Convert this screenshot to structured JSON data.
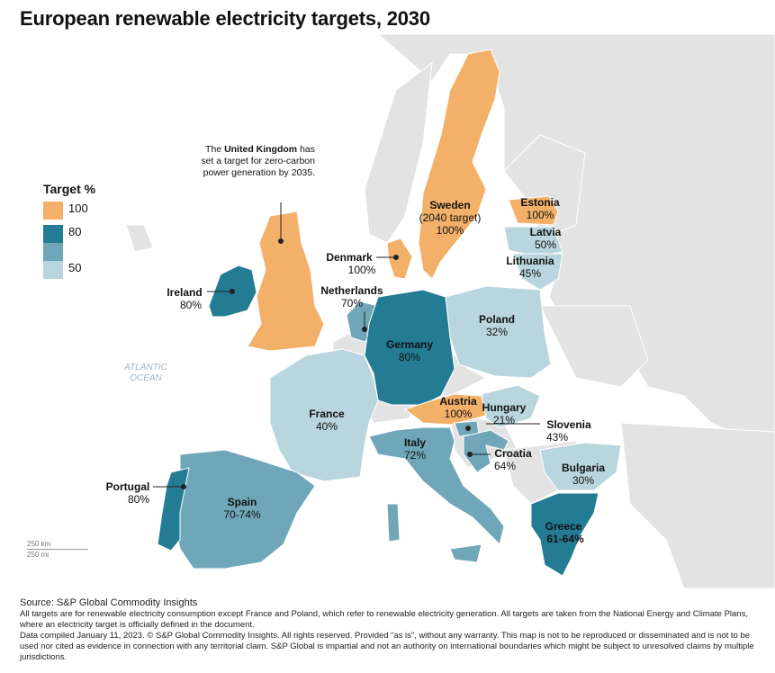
{
  "title": "European renewable electricity targets, 2030",
  "legend": {
    "title": "Target %",
    "items": [
      {
        "label": "100",
        "color": "#f2b068"
      },
      {
        "label": "80",
        "color": "#247c94"
      },
      {
        "label": "",
        "color": "#6fa7b8"
      },
      {
        "label": "50",
        "color": "#b9d6df"
      }
    ]
  },
  "colors": {
    "land": "#e3e3e3",
    "sea": "#ffffff",
    "border": "#ffffff"
  },
  "uk_note": {
    "prefix": "The ",
    "bold": "United Kingdom",
    "rest": "has set a target for zero-carbon power generation by 2035."
  },
  "sea_label": {
    "line1": "ATLANTIC",
    "line2": "OCEAN"
  },
  "countries": [
    {
      "id": "sweden",
      "name": "Sweden",
      "note": "(2040 target)",
      "target": "100%"
    },
    {
      "id": "estonia",
      "name": "Estonia",
      "target": "100%"
    },
    {
      "id": "latvia",
      "name": "Latvia",
      "target": "50%"
    },
    {
      "id": "lithuania",
      "name": "Lithuania",
      "target": "45%"
    },
    {
      "id": "denmark",
      "name": "Denmark",
      "target": "100%"
    },
    {
      "id": "ireland",
      "name": "Ireland",
      "target": "80%"
    },
    {
      "id": "netherlands",
      "name": "Netherlands",
      "target": "70%"
    },
    {
      "id": "poland",
      "name": "Poland",
      "target": "32%"
    },
    {
      "id": "germany",
      "name": "Germany",
      "target": "80%"
    },
    {
      "id": "france",
      "name": "France",
      "target": "40%"
    },
    {
      "id": "austria",
      "name": "Austria",
      "target": "100%"
    },
    {
      "id": "hungary",
      "name": "Hungary",
      "target": "21%"
    },
    {
      "id": "slovenia",
      "name": "Slovenia",
      "target": "43%"
    },
    {
      "id": "italy",
      "name": "Italy",
      "target": "72%"
    },
    {
      "id": "croatia",
      "name": "Croatia",
      "target": "64%"
    },
    {
      "id": "portugal",
      "name": "Portugal",
      "target": "80%"
    },
    {
      "id": "spain",
      "name": "Spain",
      "target": "70-74%"
    },
    {
      "id": "bulgaria",
      "name": "Bulgaria",
      "target": "30%"
    },
    {
      "id": "greece",
      "name": "Greece",
      "target": "61-64%"
    }
  ],
  "scale": {
    "km": "250 km",
    "mi": "250 mi"
  },
  "footer": {
    "source": "Source: S&P Global Commodity Insights",
    "lines": [
      "All targets are for renewable electricity consumption except France and Poland, which refer to renewable electricity generation. All targets are taken from the National Energy and Climate Plans, where an electricity target is officially defined in the document.",
      "Data compiled January 11, 2023. © S&P Global Commodity Insights. All rights reserved. Provided “as is”, without any warranty. This map is not to be reproduced or disseminated and is not to be used nor cited as evidence in connection with any territorial claim. S&P Global is impartial and not an authority on international boundaries which might be subject to unresolved claims by multiple jurisdictions."
    ]
  }
}
